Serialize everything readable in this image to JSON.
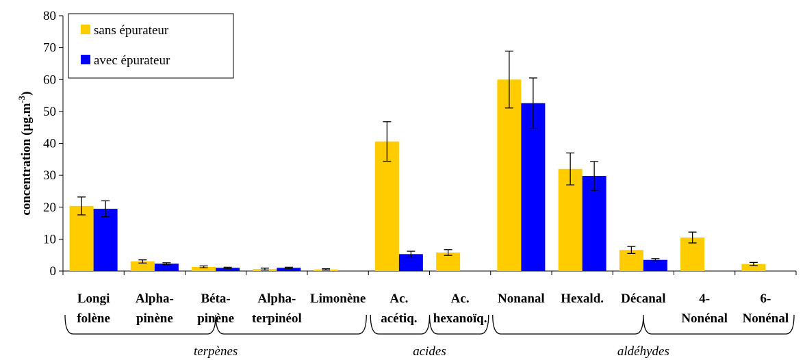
{
  "chart_data": {
    "type": "bar",
    "ylabel": "concentration (µg.m",
    "ylabel_sup": "-3",
    "ylabel_tail": ")",
    "ylim": [
      0,
      80
    ],
    "yticks": [
      0,
      10,
      20,
      30,
      40,
      50,
      60,
      70,
      80
    ],
    "grid": false,
    "legend_position": "top-left",
    "categories": [
      {
        "lines": [
          "Longi",
          "folène"
        ]
      },
      {
        "lines": [
          "Alpha-",
          "pinène"
        ]
      },
      {
        "lines": [
          "Béta-",
          "pinène"
        ]
      },
      {
        "lines": [
          "Alpha-",
          "terpinéol"
        ]
      },
      {
        "lines": [
          "Limonène"
        ]
      },
      {
        "lines": [
          "Ac.",
          "acétiq."
        ]
      },
      {
        "lines": [
          "Ac.",
          "hexanoïq."
        ]
      },
      {
        "lines": [
          "Nonanal"
        ]
      },
      {
        "lines": [
          "Hexald."
        ]
      },
      {
        "lines": [
          "Décanal"
        ]
      },
      {
        "lines": [
          "4-",
          "Nonénal"
        ]
      },
      {
        "lines": [
          "6-",
          "Nonénal"
        ]
      }
    ],
    "series": [
      {
        "name": "sans épurateur",
        "color": "#FFCC00",
        "values": [
          20.4,
          3.0,
          1.3,
          0.6,
          0.5,
          40.6,
          5.8,
          60.0,
          32.0,
          6.6,
          10.5,
          2.2
        ],
        "errors": [
          2.8,
          0.5,
          0.3,
          0.3,
          0.2,
          6.2,
          0.9,
          8.9,
          5.0,
          1.1,
          1.7,
          0.5
        ]
      },
      {
        "name": "avec épurateur",
        "color": "#0000FF",
        "values": [
          19.5,
          2.3,
          1.0,
          1.0,
          null,
          5.3,
          null,
          52.6,
          29.8,
          3.5,
          null,
          null
        ],
        "errors": [
          2.5,
          0.3,
          0.2,
          0.2,
          null,
          0.9,
          null,
          7.9,
          4.5,
          0.4,
          null,
          null
        ]
      }
    ],
    "groups": [
      {
        "label": "terpènes",
        "from": 0,
        "to": 4
      },
      {
        "label": "acides",
        "from": 5,
        "to": 6
      },
      {
        "label": "aldéhydes",
        "from": 7,
        "to": 11
      }
    ]
  }
}
